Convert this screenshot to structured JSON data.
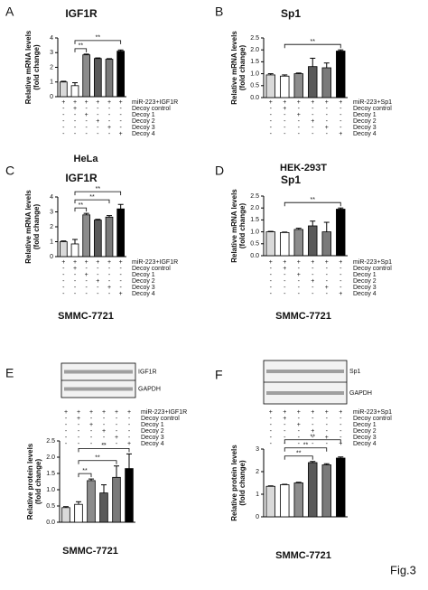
{
  "chart_data": [
    {
      "type": "bar",
      "panel": "A",
      "title": "IGF1R",
      "cell_line": "HeLa",
      "ylabel": [
        "Relative mRNA levels",
        "(fold change)"
      ],
      "values": [
        1.0,
        0.75,
        2.85,
        2.6,
        2.55,
        3.1
      ],
      "errors": [
        0.05,
        0.2,
        0.05,
        0.04,
        0.04,
        0.08
      ],
      "colors": [
        "#d9d9d9",
        "#ffffff",
        "#8c8c8c",
        "#5a5a5a",
        "#7a7a7a",
        "#000000"
      ],
      "ylim": [
        0,
        4
      ],
      "yticks": [
        0,
        1,
        2,
        3,
        4
      ],
      "conditions": [
        {
          "label": "miR-223+IGF1R",
          "signs": [
            "+",
            "+",
            "+",
            "+",
            "+",
            "+"
          ]
        },
        {
          "label": "Decoy control",
          "signs": [
            "-",
            "+",
            "-",
            "-",
            "-",
            "-"
          ]
        },
        {
          "label": "Decoy 1",
          "signs": [
            "-",
            "-",
            "+",
            "-",
            "-",
            "-"
          ]
        },
        {
          "label": "Decoy 2",
          "signs": [
            "-",
            "-",
            "-",
            "+",
            "-",
            "-"
          ]
        },
        {
          "label": "Decoy 3",
          "signs": [
            "-",
            "-",
            "-",
            "-",
            "+",
            "-"
          ]
        },
        {
          "label": "Decoy 4",
          "signs": [
            "-",
            "-",
            "-",
            "-",
            "-",
            "+"
          ]
        }
      ],
      "significance": [
        {
          "from": 1,
          "to": 2,
          "label": "**"
        },
        {
          "from": 1,
          "to": 5,
          "label": "**"
        }
      ]
    },
    {
      "type": "bar",
      "panel": "B",
      "title": "Sp1",
      "cell_line": "HEK-293T",
      "ylabel": [
        "Relative mRNA levels",
        "(fold change)"
      ],
      "values": [
        0.95,
        0.9,
        1.0,
        1.3,
        1.25,
        1.95
      ],
      "errors": [
        0.05,
        0.05,
        0.03,
        0.35,
        0.2,
        0.05
      ],
      "colors": [
        "#d9d9d9",
        "#ffffff",
        "#8c8c8c",
        "#5a5a5a",
        "#7a7a7a",
        "#000000"
      ],
      "ylim": [
        0,
        2.5
      ],
      "yticks": [
        {
          "value": 0,
          "label": "0.0"
        },
        {
          "value": 0.5,
          "label": "0.5"
        },
        {
          "value": 1,
          "label": "1.0"
        },
        {
          "value": 1.5,
          "label": "1.5"
        },
        {
          "value": 2,
          "label": "2.0"
        },
        {
          "value": 2.5,
          "label": "2.5"
        }
      ],
      "conditions": [
        {
          "label": "miR-223+Sp1",
          "signs": [
            "+",
            "+",
            "+",
            "+",
            "+",
            "+"
          ]
        },
        {
          "label": "Decoy control",
          "signs": [
            "-",
            "+",
            "-",
            "-",
            "-",
            "-"
          ]
        },
        {
          "label": "Decoy 1",
          "signs": [
            "-",
            "-",
            "+",
            "-",
            "-",
            "-"
          ]
        },
        {
          "label": "Decoy 2",
          "signs": [
            "-",
            "-",
            "-",
            "+",
            "-",
            "-"
          ]
        },
        {
          "label": "Decoy 3",
          "signs": [
            "-",
            "-",
            "-",
            "-",
            "+",
            "-"
          ]
        },
        {
          "label": "Decoy 4",
          "signs": [
            "-",
            "-",
            "-",
            "-",
            "-",
            "+"
          ]
        }
      ],
      "significance": [
        {
          "from": 1,
          "to": 5,
          "label": "**"
        }
      ]
    },
    {
      "type": "bar",
      "panel": "C",
      "title": "IGF1R",
      "cell_line": "SMMC-7721",
      "ylabel": [
        "Relative mRNA levels",
        "(fold change)"
      ],
      "values": [
        1.0,
        0.85,
        2.8,
        2.45,
        2.65,
        3.2
      ],
      "errors": [
        0.05,
        0.3,
        0.1,
        0.05,
        0.1,
        0.3
      ],
      "colors": [
        "#d9d9d9",
        "#ffffff",
        "#8c8c8c",
        "#5a5a5a",
        "#7a7a7a",
        "#000000"
      ],
      "ylim": [
        0,
        4
      ],
      "yticks": [
        0,
        1,
        2,
        3,
        4
      ],
      "conditions": [
        {
          "label": "miR-223+IGF1R",
          "signs": [
            "+",
            "+",
            "+",
            "+",
            "+",
            "+"
          ]
        },
        {
          "label": "Decoy control",
          "signs": [
            "-",
            "+",
            "-",
            "-",
            "-",
            "-"
          ]
        },
        {
          "label": "Decoy 1",
          "signs": [
            "-",
            "-",
            "+",
            "-",
            "-",
            "-"
          ]
        },
        {
          "label": "Decoy 2",
          "signs": [
            "-",
            "-",
            "-",
            "+",
            "-",
            "-"
          ]
        },
        {
          "label": "Decoy 3",
          "signs": [
            "-",
            "-",
            "-",
            "-",
            "+",
            "-"
          ]
        },
        {
          "label": "Decoy 4",
          "signs": [
            "-",
            "-",
            "-",
            "-",
            "-",
            "+"
          ]
        }
      ],
      "significance": [
        {
          "from": 1,
          "to": 2,
          "label": "**"
        },
        {
          "from": 1,
          "to": 4,
          "label": "**"
        },
        {
          "from": 1,
          "to": 5,
          "label": "**"
        }
      ]
    },
    {
      "type": "bar",
      "panel": "D",
      "title": "Sp1",
      "cell_line": "SMMC-7721",
      "ylabel": [
        "Relative mRNA levels",
        "(fold change)"
      ],
      "values": [
        1.0,
        0.97,
        1.1,
        1.25,
        1.0,
        1.95
      ],
      "errors": [
        0.02,
        0.02,
        0.05,
        0.2,
        0.4,
        0.05
      ],
      "colors": [
        "#d9d9d9",
        "#ffffff",
        "#8c8c8c",
        "#5a5a5a",
        "#7a7a7a",
        "#000000"
      ],
      "ylim": [
        0,
        2.5
      ],
      "yticks": [
        {
          "value": 0,
          "label": "0.0"
        },
        {
          "value": 0.5,
          "label": "0.5"
        },
        {
          "value": 1,
          "label": "1.0"
        },
        {
          "value": 1.5,
          "label": "1.5"
        },
        {
          "value": 2,
          "label": "2.0"
        },
        {
          "value": 2.5,
          "label": "2.5"
        }
      ],
      "conditions": [
        {
          "label": "miR-223+Sp1",
          "signs": [
            "+",
            "+",
            "+",
            "+",
            "+",
            "+"
          ]
        },
        {
          "label": "Decoy control",
          "signs": [
            "-",
            "+",
            "-",
            "-",
            "-",
            "-"
          ]
        },
        {
          "label": "Decoy 1",
          "signs": [
            "-",
            "-",
            "+",
            "-",
            "-",
            "-"
          ]
        },
        {
          "label": "Decoy 2",
          "signs": [
            "-",
            "-",
            "-",
            "+",
            "-",
            "-"
          ]
        },
        {
          "label": "Decoy 3",
          "signs": [
            "-",
            "-",
            "-",
            "-",
            "+",
            "-"
          ]
        },
        {
          "label": "Decoy 4",
          "signs": [
            "-",
            "-",
            "-",
            "-",
            "-",
            "+"
          ]
        }
      ],
      "significance": [
        {
          "from": 1,
          "to": 5,
          "label": "**"
        }
      ]
    },
    {
      "type": "bar",
      "panel": "E",
      "title": "IGF1R",
      "cell_line": "SMMC-7721",
      "ylabel": [
        "Relative protein levels",
        "(fold change)"
      ],
      "blot_labels": [
        "IGF1R",
        "GAPDH"
      ],
      "values": [
        0.45,
        0.55,
        1.28,
        0.9,
        1.38,
        1.65
      ],
      "errors": [
        0.03,
        0.08,
        0.05,
        0.25,
        0.35,
        0.45
      ],
      "colors": [
        "#d9d9d9",
        "#ffffff",
        "#8c8c8c",
        "#5a5a5a",
        "#7a7a7a",
        "#000000"
      ],
      "ylim": [
        0,
        2.5
      ],
      "yticks": [
        {
          "value": 0,
          "label": "0.0"
        },
        {
          "value": 0.5,
          "label": "0.5"
        },
        {
          "value": 1,
          "label": "1.0"
        },
        {
          "value": 1.5,
          "label": "1.5"
        },
        {
          "value": 2,
          "label": "2.0"
        },
        {
          "value": 2.5,
          "label": "2.5"
        }
      ],
      "conditions": [
        {
          "label": "miR-223+IGF1R",
          "signs": [
            "+",
            "+",
            "+",
            "+",
            "+",
            "+"
          ]
        },
        {
          "label": "Decoy control",
          "signs": [
            "-",
            "+",
            "-",
            "-",
            "-",
            "-"
          ]
        },
        {
          "label": "Decoy 1",
          "signs": [
            "-",
            "-",
            "+",
            "-",
            "-",
            "-"
          ]
        },
        {
          "label": "Decoy 2",
          "signs": [
            "-",
            "-",
            "-",
            "+",
            "-",
            "-"
          ]
        },
        {
          "label": "Decoy 3",
          "signs": [
            "-",
            "-",
            "-",
            "-",
            "+",
            "-"
          ]
        },
        {
          "label": "Decoy 4",
          "signs": [
            "-",
            "-",
            "-",
            "-",
            "-",
            "+"
          ]
        }
      ],
      "significance": [
        {
          "from": 1,
          "to": 2,
          "label": "**"
        },
        {
          "from": 1,
          "to": 4,
          "label": "**"
        },
        {
          "from": 1,
          "to": 5,
          "label": "**"
        }
      ]
    },
    {
      "type": "bar",
      "panel": "F",
      "title": "Sp1",
      "cell_line": "SMMC-7721",
      "ylabel": [
        "Relative protein levels",
        "(fold change)"
      ],
      "blot_labels": [
        "Sp1",
        "GAPDH"
      ],
      "values": [
        1.35,
        1.42,
        1.5,
        2.4,
        2.3,
        2.6
      ],
      "errors": [
        0.02,
        0.02,
        0.03,
        0.05,
        0.05,
        0.05
      ],
      "colors": [
        "#d9d9d9",
        "#ffffff",
        "#8c8c8c",
        "#5a5a5a",
        "#7a7a7a",
        "#000000"
      ],
      "ylim": [
        0,
        3
      ],
      "yticks": [
        0,
        1,
        2,
        3
      ],
      "conditions": [
        {
          "label": "miR-223+Sp1",
          "signs": [
            "+",
            "+",
            "+",
            "+",
            "+",
            "+"
          ]
        },
        {
          "label": "Decoy control",
          "signs": [
            "-",
            "+",
            "-",
            "-",
            "-",
            "-"
          ]
        },
        {
          "label": "Decoy 1",
          "signs": [
            "-",
            "-",
            "+",
            "-",
            "-",
            "-"
          ]
        },
        {
          "label": "Decoy 2",
          "signs": [
            "-",
            "-",
            "-",
            "+",
            "-",
            "-"
          ]
        },
        {
          "label": "Decoy 3",
          "signs": [
            "-",
            "-",
            "-",
            "-",
            "+",
            "-"
          ]
        },
        {
          "label": "Decoy 4",
          "signs": [
            "-",
            "-",
            "-",
            "-",
            "-",
            "+"
          ]
        }
      ],
      "significance": [
        {
          "from": 1,
          "to": 3,
          "label": "**"
        },
        {
          "from": 1,
          "to": 4,
          "label": "**"
        },
        {
          "from": 1,
          "to": 5,
          "label": "**"
        }
      ]
    }
  ],
  "figure_label": "Fig.3"
}
